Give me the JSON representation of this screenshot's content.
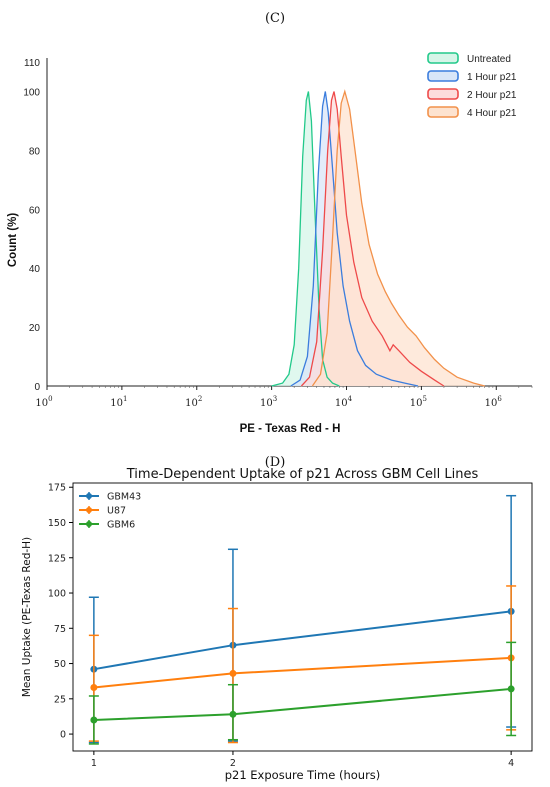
{
  "panels": {
    "c_label": "(C)",
    "d_label": "(D)"
  },
  "chart_data": [
    {
      "type": "area",
      "title": "",
      "xlabel": "PE - Texas Red - H",
      "ylabel": "Count (%)",
      "xscale": "log",
      "xlim": [
        1,
        3000000
      ],
      "ylim": [
        0,
        110
      ],
      "x_ticks": [
        {
          "base": "10",
          "exp": "0"
        },
        {
          "base": "10",
          "exp": "1"
        },
        {
          "base": "10",
          "exp": "2"
        },
        {
          "base": "10",
          "exp": "3"
        },
        {
          "base": "10",
          "exp": "4"
        },
        {
          "base": "10",
          "exp": "5"
        },
        {
          "base": "10",
          "exp": "6"
        }
      ],
      "y_ticks": [
        "0",
        "20",
        "40",
        "60",
        "80",
        "100",
        "110"
      ],
      "legend_position": "top-right",
      "series": [
        {
          "name": "Untreated",
          "color": "#22c98a",
          "fill": "#d6f5e8",
          "points": [
            [
              1000,
              0
            ],
            [
              1400,
              1
            ],
            [
              1700,
              4
            ],
            [
              2000,
              14
            ],
            [
              2300,
              40
            ],
            [
              2600,
              78
            ],
            [
              2900,
              97
            ],
            [
              3100,
              100
            ],
            [
              3400,
              90
            ],
            [
              3800,
              58
            ],
            [
              4300,
              26
            ],
            [
              4800,
              9
            ],
            [
              5500,
              3
            ],
            [
              6500,
              1
            ],
            [
              8000,
              0
            ]
          ]
        },
        {
          "name": "1 Hour p21",
          "color": "#3b7ddd",
          "fill": "#d9e6f8",
          "points": [
            [
              1800,
              0
            ],
            [
              2400,
              2
            ],
            [
              3000,
              10
            ],
            [
              3600,
              34
            ],
            [
              4200,
              72
            ],
            [
              4800,
              95
            ],
            [
              5200,
              100
            ],
            [
              5700,
              93
            ],
            [
              6500,
              74
            ],
            [
              7500,
              52
            ],
            [
              9000,
              34
            ],
            [
              11000,
              22
            ],
            [
              14000,
              12
            ],
            [
              18000,
              7
            ],
            [
              25000,
              4
            ],
            [
              40000,
              2
            ],
            [
              60000,
              1
            ],
            [
              90000,
              0
            ]
          ]
        },
        {
          "name": "2 Hour p21",
          "color": "#ee4a4a",
          "fill": "#fcdcdc",
          "points": [
            [
              2500,
              0
            ],
            [
              3200,
              3
            ],
            [
              4000,
              15
            ],
            [
              4800,
              46
            ],
            [
              5600,
              80
            ],
            [
              6300,
              97
            ],
            [
              6800,
              100
            ],
            [
              7500,
              94
            ],
            [
              8500,
              78
            ],
            [
              10000,
              58
            ],
            [
              12500,
              42
            ],
            [
              16000,
              30
            ],
            [
              22000,
              22
            ],
            [
              30000,
              17
            ],
            [
              38000,
              12
            ],
            [
              42000,
              14
            ],
            [
              50000,
              12
            ],
            [
              70000,
              8
            ],
            [
              100000,
              5
            ],
            [
              150000,
              2
            ],
            [
              200000,
              0
            ]
          ]
        },
        {
          "name": "4 Hour p21",
          "color": "#f2914a",
          "fill": "#fde3d0",
          "points": [
            [
              3500,
              0
            ],
            [
              4500,
              4
            ],
            [
              5500,
              18
            ],
            [
              6500,
              50
            ],
            [
              7500,
              80
            ],
            [
              8500,
              96
            ],
            [
              9500,
              100
            ],
            [
              11000,
              94
            ],
            [
              13000,
              80
            ],
            [
              16000,
              62
            ],
            [
              20000,
              48
            ],
            [
              26000,
              38
            ],
            [
              33000,
              32
            ],
            [
              40000,
              28
            ],
            [
              50000,
              24
            ],
            [
              65000,
              20
            ],
            [
              85000,
              17
            ],
            [
              110000,
              13
            ],
            [
              150000,
              9
            ],
            [
              200000,
              6
            ],
            [
              300000,
              3
            ],
            [
              500000,
              1
            ],
            [
              700000,
              0
            ]
          ]
        }
      ]
    },
    {
      "type": "line",
      "title": "Time-Dependent Uptake of p21 Across GBM Cell Lines",
      "xlabel": "p21 Exposure Time (hours)",
      "ylabel": "Mean Uptake (PE-Texas Red-H)",
      "x": [
        1,
        2,
        4
      ],
      "xlim": [
        0.85,
        4.15
      ],
      "ylim": [
        -12,
        178
      ],
      "x_ticks": [
        "1",
        "2",
        "4"
      ],
      "y_ticks": [
        "0",
        "25",
        "50",
        "75",
        "100",
        "125",
        "150",
        "175"
      ],
      "legend_position": "top-left",
      "error_bars": true,
      "series": [
        {
          "name": "GBM43",
          "color": "#1f77b4",
          "values": [
            46,
            63,
            87
          ],
          "err_low": [
            -6,
            -5,
            5
          ],
          "err_high": [
            97,
            131,
            169
          ]
        },
        {
          "name": "U87",
          "color": "#ff7f0e",
          "values": [
            33,
            43,
            54
          ],
          "err_low": [
            -5,
            -6,
            3
          ],
          "err_high": [
            70,
            89,
            105
          ]
        },
        {
          "name": "GBM6",
          "color": "#2ca02c",
          "values": [
            10,
            14,
            32
          ],
          "err_low": [
            -7,
            -4,
            -1
          ],
          "err_high": [
            27,
            35,
            65
          ]
        }
      ]
    }
  ]
}
